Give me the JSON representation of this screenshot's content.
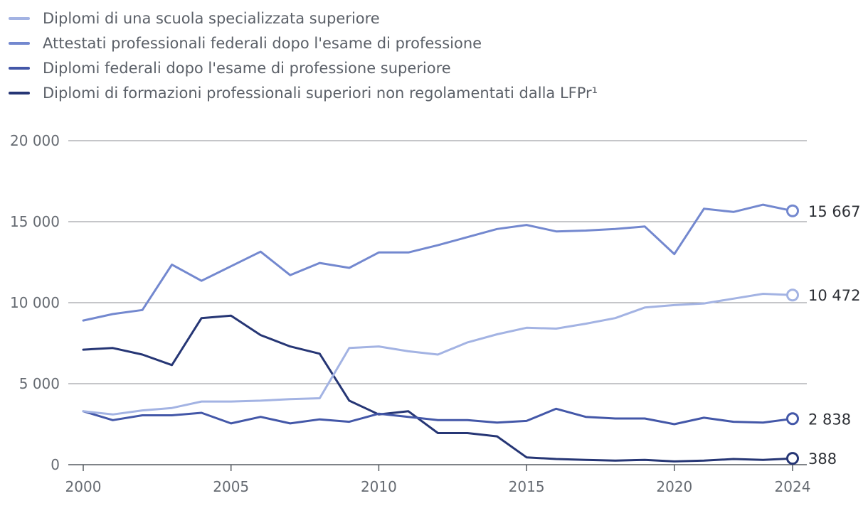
{
  "chart_data": {
    "type": "line",
    "title": "",
    "xlabel": "",
    "ylabel": "",
    "x": [
      2000,
      2001,
      2002,
      2003,
      2004,
      2005,
      2006,
      2007,
      2008,
      2009,
      2010,
      2011,
      2012,
      2013,
      2014,
      2015,
      2016,
      2017,
      2018,
      2019,
      2020,
      2021,
      2022,
      2023,
      2024
    ],
    "xticks": [
      "2000",
      "2005",
      "2010",
      "2015",
      "2020",
      "2024"
    ],
    "xtick_values": [
      2000,
      2005,
      2010,
      2015,
      2020,
      2024
    ],
    "xlim": [
      2000,
      2024
    ],
    "ylim": [
      0,
      20000
    ],
    "yticks": [
      "0",
      "5 000",
      "10 000",
      "15 000",
      "20 000"
    ],
    "ytick_values": [
      0,
      5000,
      10000,
      15000,
      20000
    ],
    "grid": "horizontal",
    "legend": "top-left",
    "series": [
      {
        "name": "Diplomi di una scuola specializzata superiore",
        "color": "#a3b3e3",
        "end_label": "10 472",
        "values": [
          3300,
          3100,
          3350,
          3500,
          3900,
          3900,
          3950,
          4050,
          4100,
          7200,
          7300,
          7000,
          6800,
          7550,
          8050,
          8450,
          8400,
          8700,
          9050,
          9700,
          9850,
          9950,
          10250,
          10550,
          10472
        ]
      },
      {
        "name": "Attestati professionali federali dopo l'esame di professione",
        "color": "#7388cf",
        "end_label": "15 667",
        "values": [
          8900,
          9300,
          9550,
          12350,
          11350,
          12250,
          13150,
          11700,
          12450,
          12150,
          13100,
          13100,
          13550,
          14050,
          14550,
          14800,
          14400,
          14450,
          14550,
          14700,
          13000,
          15800,
          15600,
          16050,
          15667
        ]
      },
      {
        "name": "Diplomi federali dopo l'esame di professione superiore",
        "color": "#4357a8",
        "end_label": "2 838",
        "values": [
          3300,
          2750,
          3050,
          3050,
          3200,
          2550,
          2950,
          2550,
          2800,
          2650,
          3150,
          2950,
          2750,
          2750,
          2600,
          2700,
          3450,
          2950,
          2850,
          2850,
          2500,
          2900,
          2650,
          2600,
          2838
        ]
      },
      {
        "name": "Diplomi di formazioni professionali superiori non regolamentati dalla LFPr¹",
        "color": "#263675",
        "end_label": "388",
        "values": [
          7100,
          7200,
          6800,
          6150,
          9050,
          9200,
          8000,
          7300,
          6850,
          3950,
          3100,
          3300,
          1950,
          1950,
          1750,
          450,
          350,
          300,
          250,
          300,
          200,
          250,
          350,
          300,
          388
        ]
      }
    ]
  }
}
